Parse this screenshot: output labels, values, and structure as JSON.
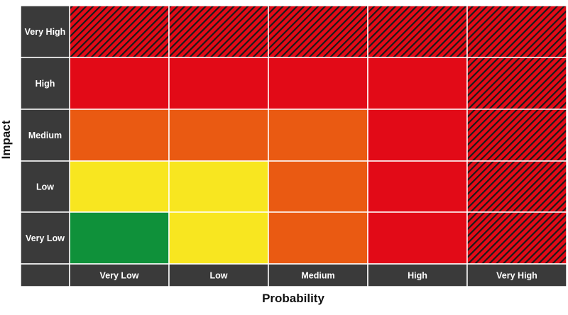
{
  "y_axis_title": "Impact",
  "x_axis_title": "Probability",
  "row_labels": [
    "Very High",
    "High",
    "Medium",
    "Low",
    "Very Low"
  ],
  "column_labels": [
    "Very Low",
    "Low",
    "Medium",
    "High",
    "Very High"
  ],
  "levels": {
    "green": "#0f913a",
    "yellow": "#f8e620",
    "orange": "#ea5a12",
    "red": "#e20a17",
    "hatched": "#e20a17"
  },
  "label_cell_color": "#3a3a3a",
  "hatch_color": "#1a1a1a",
  "grid": [
    [
      "hatched",
      "hatched",
      "hatched",
      "hatched",
      "hatched"
    ],
    [
      "red",
      "red",
      "red",
      "red",
      "hatched"
    ],
    [
      "orange",
      "orange",
      "orange",
      "red",
      "hatched"
    ],
    [
      "yellow",
      "yellow",
      "orange",
      "red",
      "hatched"
    ],
    [
      "green",
      "yellow",
      "orange",
      "red",
      "hatched"
    ]
  ]
}
